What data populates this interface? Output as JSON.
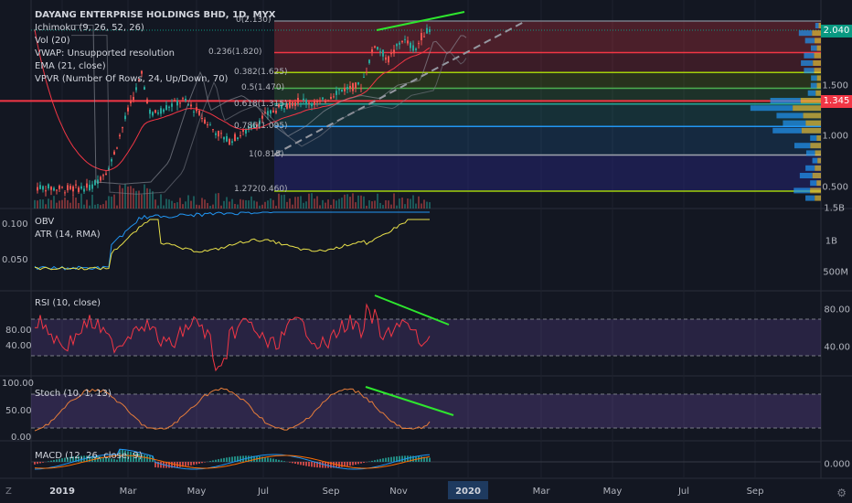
{
  "symbol_title": "DAYANG ENTERPRISE HOLDINGS BHD, 1D, MYX",
  "main_indicators": [
    "Ichimoku (9, 26, 52, 26)",
    "Vol (20)",
    "VWAP: Unsupported resolution",
    "EMA (21, close)",
    "VPVR (Number Of Rows, 24, Up/Down, 70)"
  ],
  "fib_levels": [
    {
      "label": "0(2.130)",
      "price": 2.13,
      "color": "#787b86"
    },
    {
      "label": "0.236(1.820)",
      "price": 1.82,
      "color": "#f23645"
    },
    {
      "label": "0.382(1.625)",
      "price": 1.625,
      "color": "#a2d10a"
    },
    {
      "label": "0.5(1.470)",
      "price": 1.47,
      "color": "#4caf50"
    },
    {
      "label": "0.618(1.315)",
      "price": 1.315,
      "color": "#26a69a"
    },
    {
      "label": "0.786(1.095)",
      "price": 1.095,
      "color": "#2196f3"
    },
    {
      "label": "1(0.815)",
      "price": 0.815,
      "color": "#a0a3ad"
    },
    {
      "label": "1.272(0.460)",
      "price": 0.46,
      "color": "#a2d10a"
    }
  ],
  "price_axis": [
    "1.500",
    "1.000",
    "0.500"
  ],
  "price_badges": [
    {
      "label": "2.040",
      "price": 2.04,
      "color": "#089981"
    },
    {
      "label": "1.345",
      "price": 1.345,
      "color": "#f23645"
    }
  ],
  "obv_pane": {
    "labels": [
      "OBV",
      "ATR (14, RMA)"
    ],
    "left_axis": [
      "0.100",
      "0.050"
    ],
    "right_axis": [
      "1.5B",
      "1B",
      "500M"
    ]
  },
  "rsi_pane": {
    "label": "RSI (10, close)",
    "left_axis": [
      "80.00",
      "40.00"
    ],
    "right_axis": [
      "80.00",
      "40.00"
    ]
  },
  "stoch_pane": {
    "label": "Stoch (10, 1, 13)",
    "left_axis": [
      "100.00",
      "50.00",
      "0.00"
    ]
  },
  "macd_pane": {
    "label": "MACD (12, 26, close, 9)",
    "right_axis": [
      "0.000"
    ]
  },
  "time_axis": [
    "2019",
    "Mar",
    "May",
    "Jul",
    "Sep",
    "Nov",
    "2020",
    "Mar",
    "May",
    "Jul",
    "Sep"
  ],
  "colors": {
    "background": "#131722",
    "up": "#26a69a",
    "down": "#ef5350",
    "obv": "#2196f3",
    "atr": "#e8e04a",
    "rsi": "#f23645",
    "stoch": "#e57c3a",
    "trendline": "#2ee62e"
  },
  "corner_label": "Z"
}
